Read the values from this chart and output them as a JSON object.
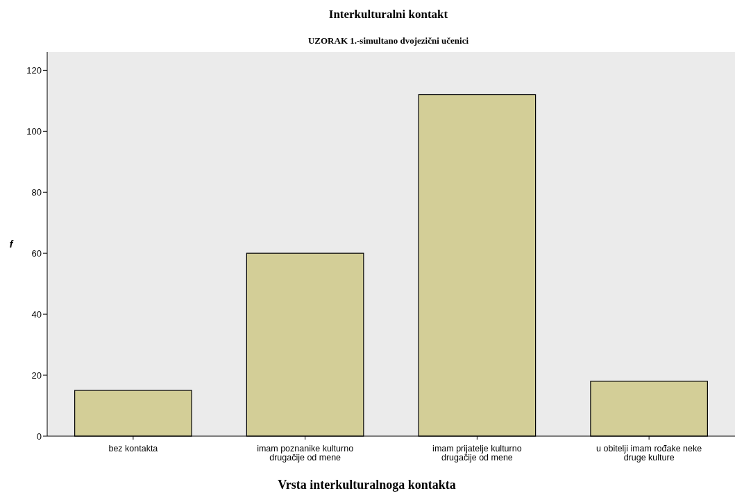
{
  "chart_data": {
    "type": "bar",
    "title": "Interkulturalni kontakt",
    "subtitle": "UZORAK 1.-simultano dvojezični učenici",
    "xlabel": "Vrsta interkulturalnoga kontakta",
    "ylabel": "f",
    "categories": [
      "bez kontakta",
      "imam poznanike kulturno drugačije od mene",
      "imam prijatelje kulturno drugačije od mene",
      "u obitelji imam rođake neke druge kulture"
    ],
    "values": [
      15,
      60,
      112,
      18
    ],
    "color": "#d3ce97",
    "ylim": [
      0,
      126
    ],
    "yticks": [
      0,
      20,
      40,
      60,
      80,
      100,
      120
    ],
    "grid": false
  }
}
